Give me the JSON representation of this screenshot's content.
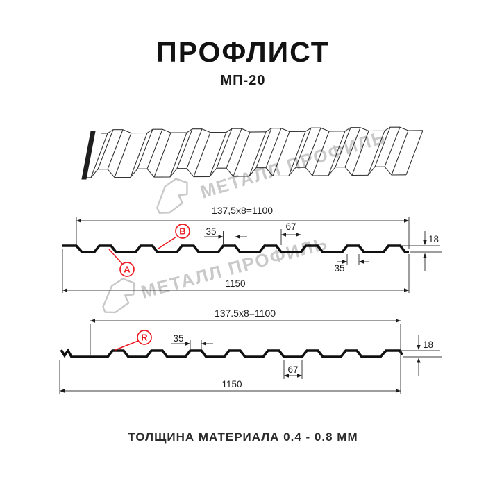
{
  "header": {
    "title": "ПРОФЛИСТ",
    "subtitle": "МП-20"
  },
  "watermark": {
    "text": "МЕТАЛЛ ПРОФИЛЬ",
    "color": "#c9c9c9"
  },
  "profile_top": {
    "dims": {
      "coverage_width": "137,5x8=1100",
      "rib_top_width": "35",
      "valley_width": "67",
      "rib_bottom_width": "35",
      "height": "18",
      "full_width": "1150"
    },
    "labels": {
      "side_a": "A",
      "side_b": "B"
    }
  },
  "profile_bottom": {
    "dims": {
      "coverage_width": "137.5x8=1100",
      "rib_top_width": "35",
      "valley_width": "67",
      "height": "18",
      "full_width": "1150"
    },
    "labels": {
      "side_r": "R"
    }
  },
  "footer": {
    "note": "ТОЛЩИНА МАТЕРИАЛА 0.4 - 0.8 ММ"
  },
  "colors": {
    "accent_red": "#ed1c24",
    "line": "#1c1c1c",
    "watermark": "#c9c9c9"
  }
}
